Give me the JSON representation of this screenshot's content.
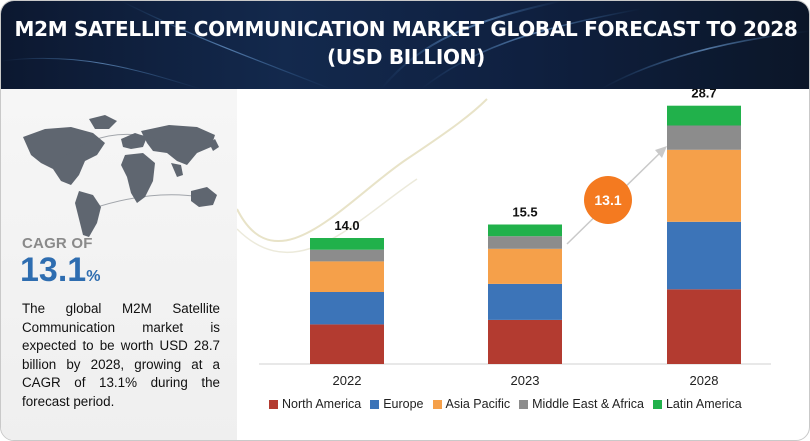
{
  "header": {
    "title": "M2M SATELLITE COMMUNICATION MARKET GLOBAL FORECAST TO 2028 (USD BILLION)"
  },
  "sidebar": {
    "cagr_label": "CAGR OF",
    "cagr_value": "13.1",
    "cagr_unit": "%",
    "description": "The global M2M Satellite Communication market is expected to be worth USD 28.7 billion by 2028, growing at a CAGR of 13.1% during the forecast period."
  },
  "colors": {
    "north_america": "#b33b30",
    "europe": "#3c74b8",
    "asia_pacific": "#f5a04a",
    "middle_east_africa": "#8c8c8c",
    "latin_america": "#21b14b",
    "cagr_bubble": "#f47a20",
    "cagr_text": "#2e6db0"
  },
  "chart_data": {
    "type": "bar",
    "stacked": true,
    "categories": [
      "2022",
      "2023",
      "2028"
    ],
    "totals": [
      "14.0",
      "15.5",
      "28.7"
    ],
    "series": [
      {
        "name": "North America",
        "values": [
          4.4,
          4.9,
          8.3
        ]
      },
      {
        "name": "Europe",
        "values": [
          3.6,
          4.0,
          7.5
        ]
      },
      {
        "name": "Asia Pacific",
        "values": [
          3.4,
          3.9,
          8.0
        ]
      },
      {
        "name": "Middle East & Africa",
        "values": [
          1.3,
          1.4,
          2.7
        ]
      },
      {
        "name": "Latin America",
        "values": [
          1.3,
          1.3,
          2.2
        ]
      }
    ],
    "annotation": "13.1",
    "legend_position": "bottom"
  }
}
